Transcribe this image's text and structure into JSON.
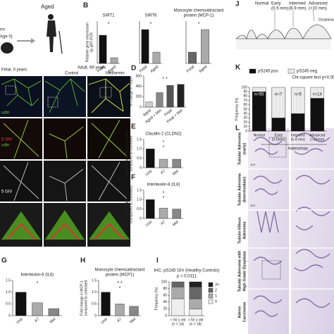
{
  "panel_labels": [
    "B",
    "D",
    "E",
    "F",
    "G",
    "H",
    "I",
    "J",
    "K",
    "L"
  ],
  "figure": {
    "aged": "Aged",
    "left_fragments": [
      "rm",
      "Age 0)"
    ],
    "micro": {
      "fetal": "Fetal, 0 years",
      "adult": "Adult, 69 years",
      "control": "Control",
      "metformin": "Metformin",
      "stains": [
        "udin",
        "5 GIV",
        "udin",
        "5 GIV"
      ]
    },
    "stages": [
      "Normal",
      [
        "Early",
        "(0-5 mm)"
      ],
      [
        "Intermed",
        "(6-9 mm)"
      ],
      [
        "Advanced",
        "(>10 mm)"
      ]
    ],
    "dysplasia": "Dysplasia",
    "histology": {
      "rows": [
        [
          "Tubular Adenoma",
          "(early)"
        ],
        [
          "Tubular Adenoma",
          "(Intermediate)"
        ],
        [
          "Tubulo-Villous",
          "Adenoma"
        ],
        [
          "Tubular Adenoma with",
          "High Grade Dysplasia"
        ],
        [
          "Adeno",
          "Carcinoma"
        ]
      ],
      "magnification": "10X"
    }
  },
  "chart_data": [
    {
      "type": "bar",
      "title": "SIRT1",
      "ylabel": [
        "Relative gene expression",
        "by qRT-PCR"
      ],
      "categories": [
        "Fetal",
        "Aged"
      ],
      "values": [
        1.0,
        0.2
      ],
      "colors": [
        "#111111",
        "#aaaaaa"
      ],
      "ylim": [
        0,
        1.5
      ],
      "annotations": [
        "*"
      ]
    },
    {
      "type": "bar",
      "title": "SIRT6",
      "categories": [
        "Fetal",
        "Aged"
      ],
      "values": [
        1.2,
        0.4
      ],
      "colors": [
        "#111111",
        "#aaaaaa"
      ],
      "ylim": [
        0,
        1.5
      ],
      "annotations": [
        "*"
      ]
    },
    {
      "type": "bar",
      "title": [
        "Monocyte chemoattractant",
        "protein (MCP-1)"
      ],
      "categories": [
        "Fetal",
        "Aged"
      ],
      "values": [
        0.4,
        1.2
      ],
      "colors": [
        "#666666",
        "#aaaaaa"
      ],
      "ylim": [
        0,
        1.5
      ],
      "annotations": [
        "*"
      ]
    },
    {
      "type": "bar",
      "ylabel": "% Change in TEER",
      "categories": [
        "Aged",
        "Aged + Met",
        "Fetal",
        "Fetal + Met"
      ],
      "values": [
        100,
        280,
        420,
        440
      ],
      "colors": [
        "#cccccc",
        "#888888",
        "#555555",
        "#222222"
      ],
      "ylim": [
        0,
        600
      ],
      "yticks": [
        0,
        200,
        400,
        600
      ],
      "annotations": [
        "* *"
      ]
    },
    {
      "type": "bar",
      "title": "Claudin-2 (CLDN2)",
      "ylabel": [
        "Relative expression of CLDN2",
        "compared to untreated"
      ],
      "categories": [
        "Untr",
        "A7",
        "Met"
      ],
      "values": [
        1.0,
        0.45,
        0.45
      ],
      "colors": [
        "#111111",
        "#aaaaaa",
        "#888888"
      ],
      "ylim": [
        0,
        1.5
      ],
      "yticks": [
        0,
        0.5,
        {
          "value": 1,
          "label": "1.0"
        },
        1.5
      ],
      "annotations": [
        "*",
        "*"
      ]
    },
    {
      "type": "bar",
      "title": "Interleukin-8 (IL8)",
      "ylabel": [
        "Fold change in IL-8",
        "(compared to untreated)"
      ],
      "categories": [
        "Untr",
        "A7",
        "Met"
      ],
      "values": [
        1.0,
        0.55,
        0.5
      ],
      "colors": [
        "#111111",
        "#aaaaaa",
        "#888888"
      ],
      "ylim": [
        0,
        1.5
      ],
      "yticks": [
        0,
        0.5,
        {
          "value": 1,
          "label": "1.0"
        },
        1.5
      ],
      "annotations": [
        "*",
        "*"
      ]
    },
    {
      "type": "bar",
      "title": "Interleukin-6 (IL6)",
      "categories": [
        "Untr",
        "A7",
        "Met"
      ],
      "values": [
        1.0,
        0.55,
        0.3
      ],
      "colors": [
        "#111111",
        "#aaaaaa",
        "#888888"
      ],
      "ylim": [
        0,
        1.5
      ],
      "yticks": [
        0,
        0.5,
        {
          "value": 1,
          "label": "1.0"
        },
        1.5
      ],
      "annotations": [
        "*"
      ]
    },
    {
      "type": "bar",
      "title": [
        "Monocyte chemoattractant",
        "protein (MCP1)"
      ],
      "ylabel": [
        "Fold change in MCP-1",
        "compared to untreated"
      ],
      "categories": [
        "Untr",
        "A7",
        "Met"
      ],
      "values": [
        1.0,
        0.5,
        0.4
      ],
      "colors": [
        "#111111",
        "#aaaaaa",
        "#888888"
      ],
      "ylim": [
        0,
        1.5
      ],
      "yticks": [
        0,
        0.5,
        {
          "value": 1,
          "label": "1.0"
        },
        1.5
      ],
      "annotations": [
        "* *",
        "*"
      ]
    },
    {
      "type": "stacked_bar",
      "title": "IHC: pS245 GIV (Healthy Controls)",
      "subtitle": "p = 0.0311",
      "ylabel": "Frequency (%)",
      "categories": [
        [
          "< 50 y old",
          "(n = 14)"
        ],
        [
          "> 50 y old",
          "(n = 18)"
        ]
      ],
      "series": [
        {
          "name": "0",
          "color": "#eeeeee",
          "values": [
            50,
            20
          ]
        },
        {
          "name": "1",
          "color": "#aaaaaa",
          "values": [
            35,
            30
          ]
        },
        {
          "name": "2",
          "color": "#666666",
          "values": [
            15,
            35
          ]
        },
        {
          "name": "3+",
          "color": "#222222",
          "values": [
            0,
            15
          ]
        }
      ],
      "ylim": [
        0,
        100
      ],
      "yticks": [
        0,
        20,
        40,
        60,
        80,
        100
      ],
      "legend": "right"
    },
    {
      "type": "stacked_bar",
      "subtitle": "Chi-square test p<0.0001",
      "ylabel": "Frequency [%]",
      "xlabel": "Adenomas",
      "categories": [
        "Normal",
        [
          "Early",
          "(0-5mm)"
        ],
        [
          "Intermed",
          "(6-9 mm)"
        ],
        [
          "Advanced",
          "(>10mm)"
        ]
      ],
      "series": [
        {
          "name": "pS245 pos",
          "color": "#111111",
          "values": [
            90,
            30,
            40,
            75
          ]
        },
        {
          "name": "pS245 neg",
          "color": "url(#hatch)",
          "values": [
            10,
            70,
            60,
            25
          ]
        }
      ],
      "bar_labels": [
        "n=55",
        "n=7",
        "n=5",
        "n=14"
      ],
      "ylim": [
        0,
        100
      ],
      "yticks": [
        0,
        10,
        20,
        30,
        40,
        50,
        60,
        70,
        80,
        90,
        100
      ],
      "legend": "top"
    }
  ]
}
